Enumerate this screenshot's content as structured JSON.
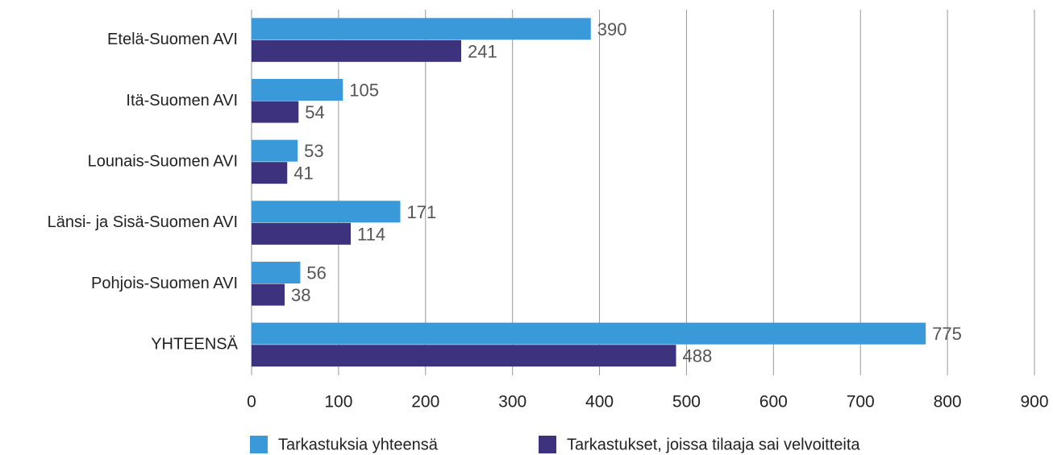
{
  "chart_data": {
    "type": "bar",
    "orientation": "horizontal",
    "categories": [
      "Etelä-Suomen AVI",
      "Itä-Suomen AVI",
      "Lounais-Suomen AVI",
      "Länsi- ja Sisä-Suomen AVI",
      "Pohjois-Suomen AVI",
      "YHTEENSÄ"
    ],
    "series": [
      {
        "name": "Tarkastuksia yhteensä",
        "color": "#3a9ad9",
        "values": [
          390,
          105,
          53,
          171,
          56,
          775
        ]
      },
      {
        "name": "Tarkastukset, joissa tilaaja sai velvoitteita",
        "color": "#3d327e",
        "values": [
          241,
          54,
          41,
          114,
          38,
          488
        ]
      }
    ],
    "xlim": [
      0,
      900
    ],
    "xticks": [
      0,
      100,
      200,
      300,
      400,
      500,
      600,
      700,
      800,
      900
    ],
    "grid": true
  }
}
